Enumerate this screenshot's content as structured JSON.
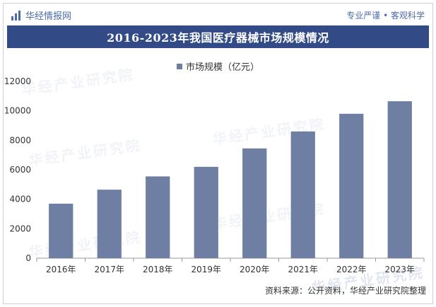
{
  "header": {
    "brand": "华经情报网",
    "slogan": "专业严谨 • 客观科学"
  },
  "watermark_text": "华经产业研究院",
  "source_note": "资料来源：公开资料，华经产业研究院整理",
  "colors": {
    "title_bg": "#324b86",
    "bar": "#6f7fa3",
    "brand": "#4d6aa8"
  },
  "chart_data": {
    "type": "bar",
    "title": "2016-2023年我国医疗器械市场规模情况",
    "categories": [
      "2016年",
      "2017年",
      "2018年",
      "2019年",
      "2020年",
      "2021年",
      "2022年",
      "2023年"
    ],
    "series": [
      {
        "name": "市场规模（亿元）",
        "values": [
          3700,
          4650,
          5550,
          6200,
          7450,
          8600,
          9800,
          10650
        ]
      }
    ],
    "yticks": [
      0,
      2000,
      4000,
      6000,
      8000,
      10000,
      12000
    ],
    "ylim": [
      0,
      12000
    ],
    "xlabel": "",
    "ylabel": "",
    "grid": false,
    "legend": "top-center"
  }
}
